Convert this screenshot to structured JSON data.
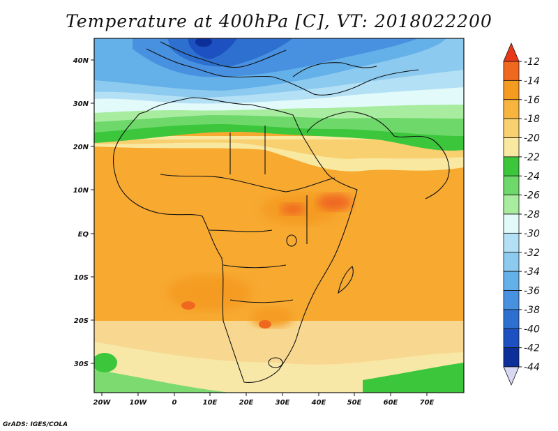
{
  "title": "Temperature at 400hPa [C], VT: 2018022200",
  "credit": "GrADS: IGES/COLA",
  "map": {
    "lon_labels": [
      "20W",
      "10W",
      "0",
      "10E",
      "20E",
      "30E",
      "40E",
      "50E",
      "60E",
      "70E"
    ],
    "lat_labels": [
      "40N",
      "30N",
      "20N",
      "10N",
      "EQ",
      "10S",
      "20S",
      "30S"
    ]
  },
  "colorbar": {
    "labels": [
      "-12",
      "-14",
      "-16",
      "-18",
      "-20",
      "-22",
      "-24",
      "-26",
      "-28",
      "-30",
      "-32",
      "-34",
      "-36",
      "-38",
      "-40",
      "-42",
      "-44"
    ],
    "colors": [
      "#f06820",
      "#f59b20",
      "#f7b540",
      "#f8d070",
      "#f8e8a0",
      "#3cc63c",
      "#6fd86a",
      "#a8eca0",
      "#e2fafa",
      "#b4e0f5",
      "#8ccaf0",
      "#64b0e8",
      "#4890e0",
      "#2d70d0",
      "#1d50c0",
      "#0d2f9a"
    ],
    "top_arrow_color": "#e83818",
    "bottom_arrow_color": "#d8d8f2"
  }
}
